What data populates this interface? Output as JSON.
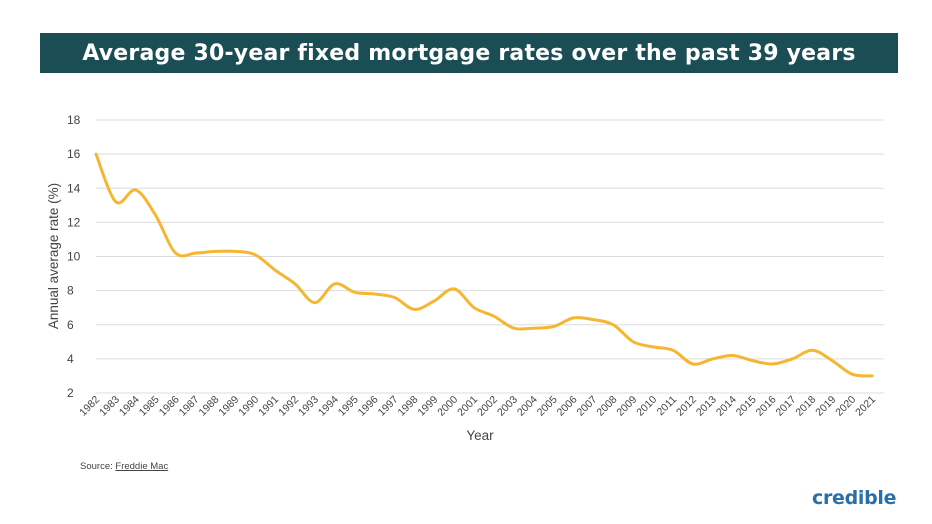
{
  "header": {
    "title": "Average 30-year fixed mortgage rates over the past 39 years"
  },
  "footer": {
    "source_label": "Source: ",
    "source_link": "Freddie Mac",
    "brand": "credible"
  },
  "colors": {
    "title_bar": "#1b4d55",
    "line": "#f5b631",
    "grid": "#dcdcdc",
    "brand": "#2a6fa8"
  },
  "chart_data": {
    "type": "line",
    "title": "Average 30-year fixed mortgage rates over the past 39 years",
    "xlabel": "Year",
    "ylabel": "Annual average rate (%)",
    "ylim": [
      2,
      18
    ],
    "yticks": [
      2,
      4,
      6,
      8,
      10,
      12,
      14,
      16,
      18
    ],
    "grid": true,
    "x": [
      "1982",
      "1983",
      "1984",
      "1985",
      "1986",
      "1987",
      "1988",
      "1989",
      "1990",
      "1991",
      "1992",
      "1993",
      "1994",
      "1995",
      "1996",
      "1997",
      "1998",
      "1999",
      "2000",
      "2001",
      "2002",
      "2003",
      "2004",
      "2005",
      "2006",
      "2007",
      "2008",
      "2009",
      "2010",
      "2011",
      "2012",
      "2013",
      "2014",
      "2015",
      "2016",
      "2017",
      "2018",
      "2019",
      "2020",
      "2021"
    ],
    "series": [
      {
        "values": [
          16.0,
          13.2,
          13.9,
          12.4,
          10.2,
          10.2,
          10.3,
          10.3,
          10.1,
          9.2,
          8.4,
          7.3,
          8.4,
          7.9,
          7.8,
          7.6,
          6.9,
          7.4,
          8.1,
          7.0,
          6.5,
          5.8,
          5.8,
          5.9,
          6.4,
          6.3,
          6.0,
          5.0,
          4.7,
          4.5,
          3.7,
          4.0,
          4.2,
          3.9,
          3.7,
          4.0,
          4.5,
          3.9,
          3.1,
          3.0
        ]
      }
    ]
  }
}
